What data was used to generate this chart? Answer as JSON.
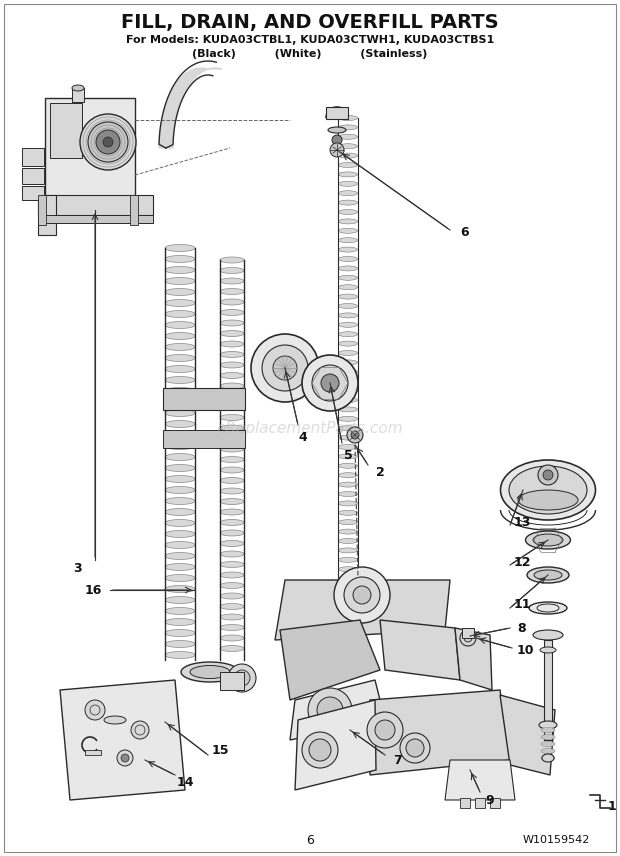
{
  "title": "FILL, DRAIN, AND OVERFILL PARTS",
  "subtitle1": "For Models: KUDA03CTBL1, KUDA03CTWH1, KUDA03CTBS1",
  "subtitle2": "(Black)          (White)          (Stainless)",
  "page_number": "6",
  "part_number": "W10159542",
  "watermark": "eReplacementParts.com",
  "bg_color": "#ffffff",
  "lc": "#2a2a2a",
  "gray1": "#c8c8c8",
  "gray2": "#d8d8d8",
  "gray3": "#e8e8e8",
  "gray4": "#b0b0b0",
  "gray5": "#a0a0a0"
}
